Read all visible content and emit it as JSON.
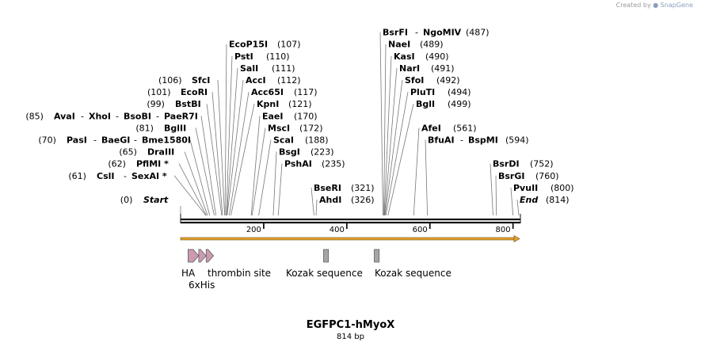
{
  "credit": {
    "text": "Created by",
    "brand": "SnapGene"
  },
  "map": {
    "name": "EGFPC1-hMyoX",
    "length_label": "814 bp",
    "total_bp": 814
  },
  "ruler": {
    "ticks": [
      "200",
      "400",
      "600",
      "800"
    ]
  },
  "orf_color": "#e8a530",
  "sites": [
    {
      "pos_label": "(107)",
      "enzymes": [
        "EcoP15I"
      ],
      "bp": 107,
      "side": "right"
    },
    {
      "pos_label": "(110)",
      "enzymes": [
        "PstI"
      ],
      "bp": 110,
      "side": "right"
    },
    {
      "pos_label": "(111)",
      "enzymes": [
        "SalI"
      ],
      "bp": 111,
      "side": "right"
    },
    {
      "pos_label": "(112)",
      "enzymes": [
        "AccI"
      ],
      "bp": 112,
      "side": "right"
    },
    {
      "pos_label": "(117)",
      "enzymes": [
        "Acc65I"
      ],
      "bp": 117,
      "side": "right"
    },
    {
      "pos_label": "(121)",
      "enzymes": [
        "KpnI"
      ],
      "bp": 121,
      "side": "right"
    },
    {
      "pos_label": "(170)",
      "enzymes": [
        "EaeI"
      ],
      "bp": 170,
      "side": "right"
    },
    {
      "pos_label": "(172)",
      "enzymes": [
        "MscI"
      ],
      "bp": 172,
      "side": "right"
    },
    {
      "pos_label": "(188)",
      "enzymes": [
        "ScaI"
      ],
      "bp": 188,
      "side": "right"
    },
    {
      "pos_label": "(223)",
      "enzymes": [
        "BsgI"
      ],
      "bp": 223,
      "side": "right"
    },
    {
      "pos_label": "(235)",
      "enzymes": [
        "PshAI"
      ],
      "bp": 235,
      "side": "right"
    },
    {
      "pos_label": "(321)",
      "enzymes": [
        "BseRI"
      ],
      "bp": 321,
      "side": "right"
    },
    {
      "pos_label": "(326)",
      "enzymes": [
        "AhdI"
      ],
      "bp": 326,
      "side": "right"
    },
    {
      "pos_label": "(487)",
      "enzymes": [
        "BsrFI",
        "NgoMIV"
      ],
      "bp": 487,
      "side": "right"
    },
    {
      "pos_label": "(489)",
      "enzymes": [
        "NaeI"
      ],
      "bp": 489,
      "side": "right"
    },
    {
      "pos_label": "(490)",
      "enzymes": [
        "KasI"
      ],
      "bp": 490,
      "side": "right"
    },
    {
      "pos_label": "(491)",
      "enzymes": [
        "NarI"
      ],
      "bp": 491,
      "side": "right"
    },
    {
      "pos_label": "(492)",
      "enzymes": [
        "SfoI"
      ],
      "bp": 492,
      "side": "right"
    },
    {
      "pos_label": "(494)",
      "enzymes": [
        "PluTI"
      ],
      "bp": 494,
      "side": "right"
    },
    {
      "pos_label": "(499)",
      "enzymes": [
        "BglI"
      ],
      "bp": 499,
      "side": "right"
    },
    {
      "pos_label": "(561)",
      "enzymes": [
        "AfeI"
      ],
      "bp": 561,
      "side": "right"
    },
    {
      "pos_label": "(594)",
      "enzymes": [
        "BfuAI",
        "BspMI"
      ],
      "bp": 594,
      "side": "right"
    },
    {
      "pos_label": "(752)",
      "enzymes": [
        "BsrDI"
      ],
      "bp": 752,
      "side": "right"
    },
    {
      "pos_label": "(760)",
      "enzymes": [
        "BsrGI"
      ],
      "bp": 760,
      "side": "right"
    },
    {
      "pos_label": "(800)",
      "enzymes": [
        "PvuII"
      ],
      "bp": 800,
      "side": "right"
    },
    {
      "pos_label": "(814)",
      "enzymes": [
        "End"
      ],
      "bp": 814,
      "side": "right",
      "italic": true
    },
    {
      "pos_label": "(106)",
      "enzymes": [
        "SfcI"
      ],
      "bp": 106,
      "side": "left"
    },
    {
      "pos_label": "(101)",
      "enzymes": [
        "EcoRI"
      ],
      "bp": 101,
      "side": "left"
    },
    {
      "pos_label": "(99)",
      "enzymes": [
        "BstBI"
      ],
      "bp": 99,
      "side": "left"
    },
    {
      "pos_label": "(85)",
      "enzymes": [
        "AvaI",
        "XhoI",
        "BsoBI",
        "PaeR7I"
      ],
      "bp": 85,
      "side": "left"
    },
    {
      "pos_label": "(81)",
      "enzymes": [
        "BglII"
      ],
      "bp": 81,
      "side": "left"
    },
    {
      "pos_label": "(70)",
      "enzymes": [
        "PasI",
        "BaeGI",
        "Bme1580I"
      ],
      "bp": 70,
      "side": "left"
    },
    {
      "pos_label": "(65)",
      "enzymes": [
        "DraIII"
      ],
      "bp": 65,
      "side": "left"
    },
    {
      "pos_label": "(62)",
      "enzymes": [
        "PflMI *"
      ],
      "bp": 62,
      "side": "left"
    },
    {
      "pos_label": "(61)",
      "enzymes": [
        "CslI",
        "SexAI *"
      ],
      "bp": 61,
      "side": "left"
    },
    {
      "pos_label": "(0)",
      "enzymes": [
        "Start"
      ],
      "bp": 0,
      "side": "left",
      "italic": true
    }
  ],
  "features": [
    {
      "label": "HA",
      "start": 18,
      "end": 44,
      "arrow": true,
      "color": "#c99ab0"
    },
    {
      "label": "6xHis",
      "start": 44,
      "end": 62,
      "arrow": true,
      "color": "#c99ab0"
    },
    {
      "label": "thrombin site",
      "start": 62,
      "end": 80,
      "arrow": true,
      "color": "#c99ab0"
    },
    {
      "label": "Kozak sequence",
      "start": 344,
      "end": 356,
      "arrow": false,
      "color": "#a6a6a6"
    },
    {
      "label": "Kozak sequence",
      "start": 466,
      "end": 478,
      "arrow": false,
      "color": "#a6a6a6"
    }
  ]
}
